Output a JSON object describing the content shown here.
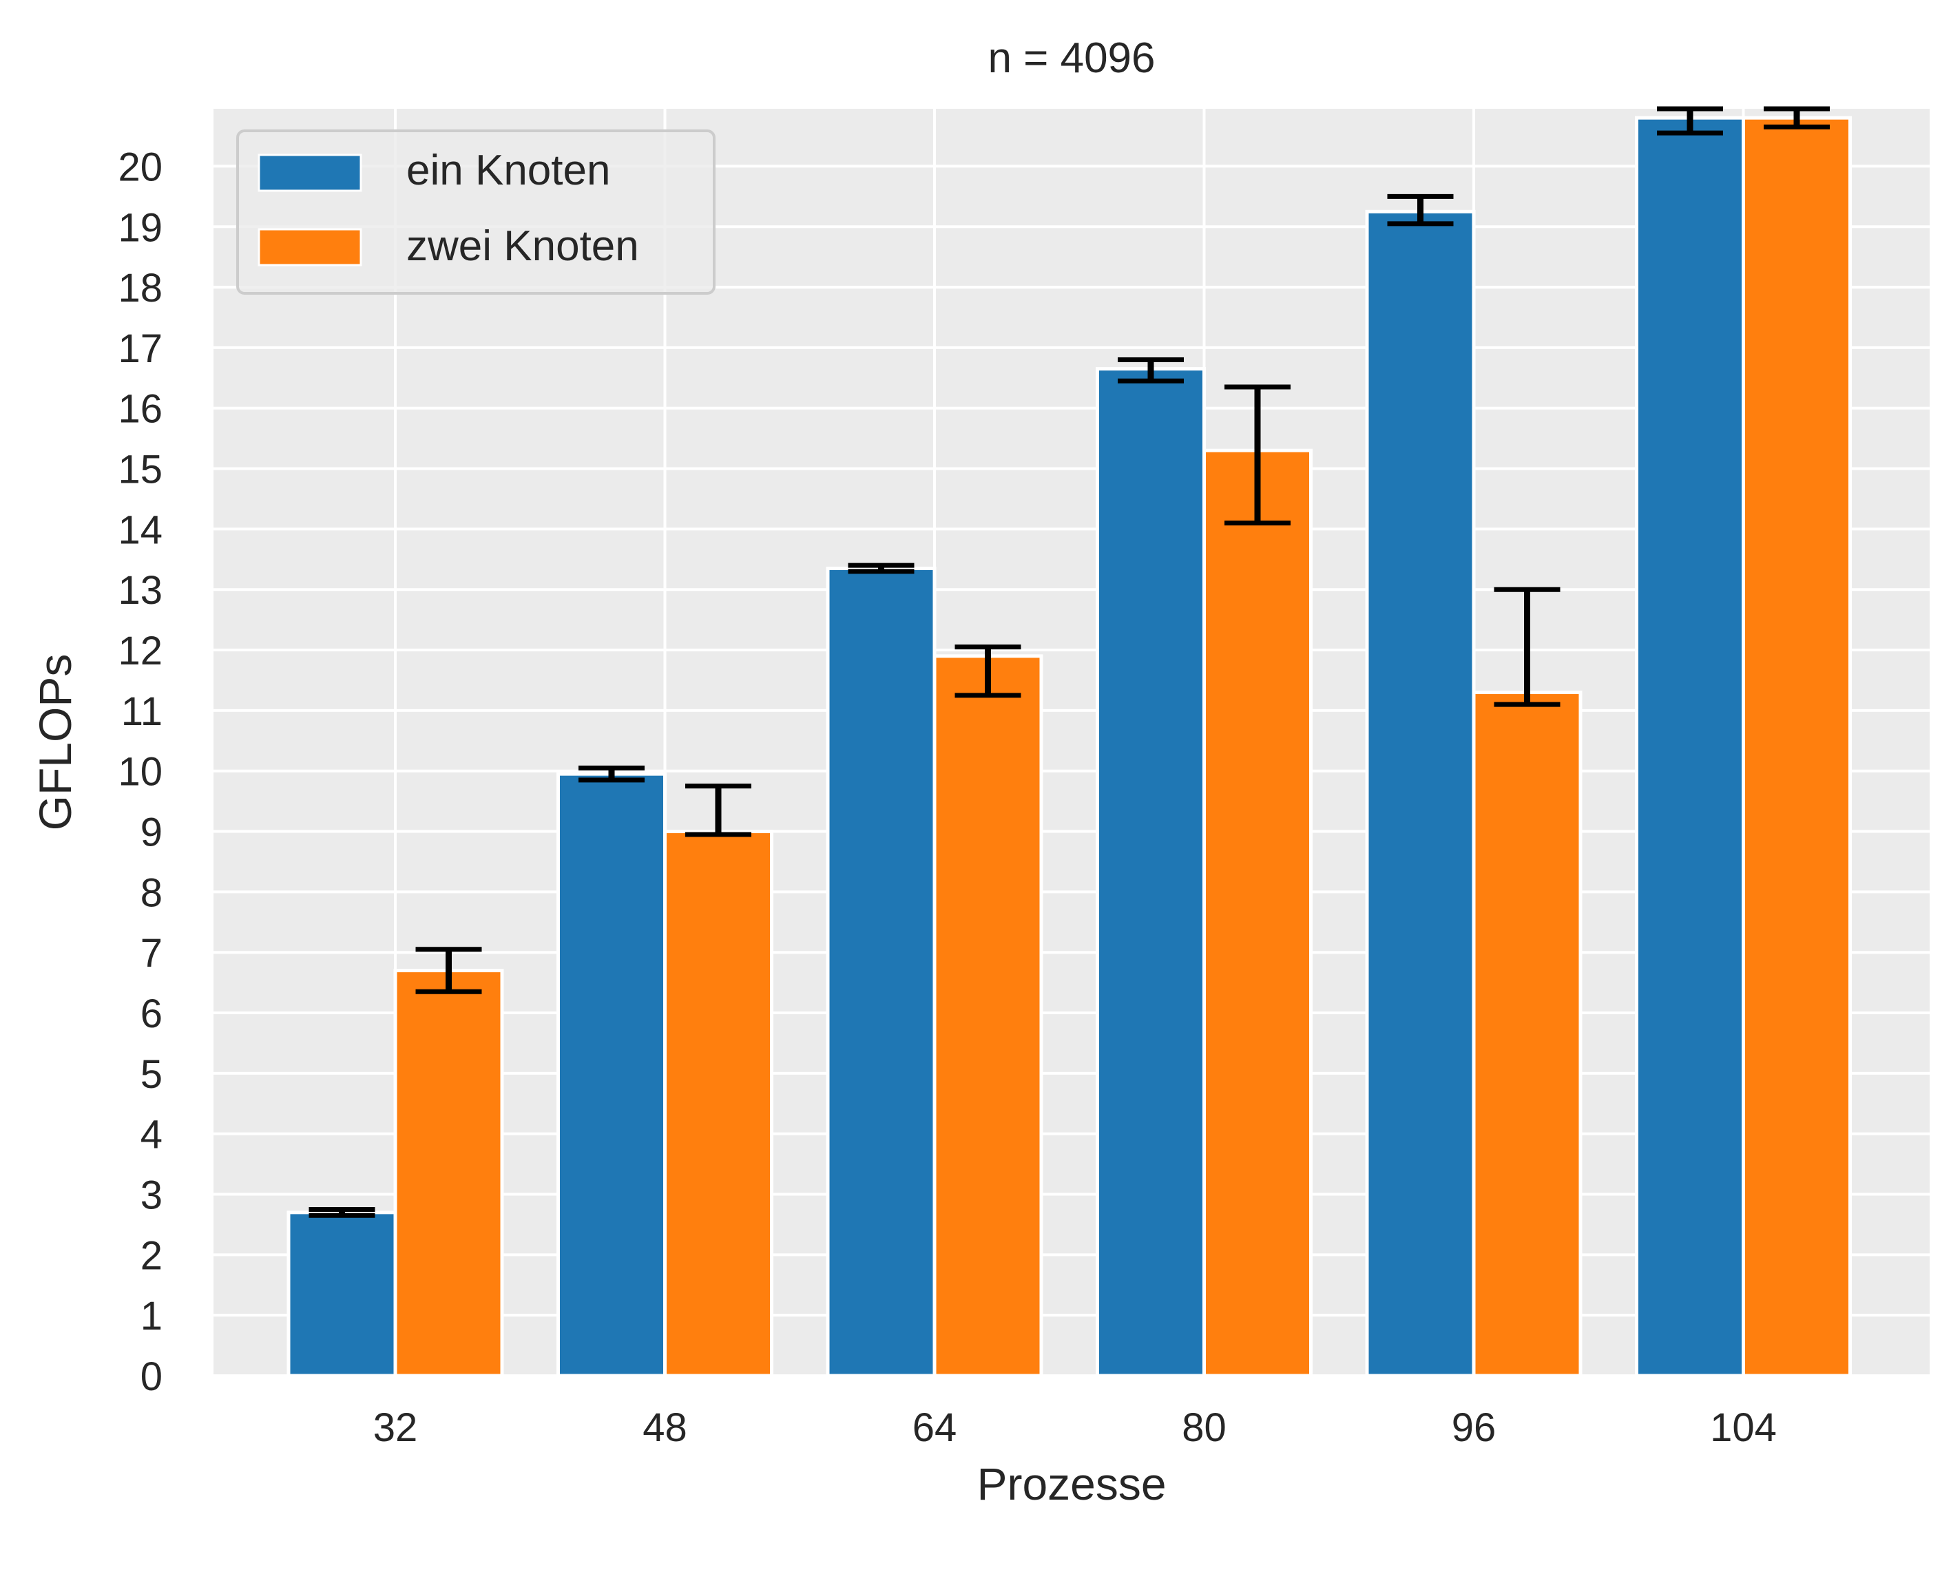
{
  "chart_data": {
    "type": "bar",
    "title": "n = 4096",
    "xlabel": "Prozesse",
    "ylabel": "GFLOPs",
    "categories": [
      "32",
      "48",
      "64",
      "80",
      "96",
      "104"
    ],
    "series": [
      {
        "name": "ein Knoten",
        "color": "#1f77b4",
        "values": [
          2.7,
          9.95,
          13.35,
          16.65,
          19.25,
          20.8
        ],
        "err_low": [
          2.65,
          9.85,
          13.3,
          16.45,
          19.05,
          20.55
        ],
        "err_high": [
          2.75,
          10.05,
          13.4,
          16.8,
          19.5,
          20.95
        ]
      },
      {
        "name": "zwei Knoten",
        "color": "#ff7f0e",
        "values": [
          6.7,
          9.0,
          11.9,
          15.3,
          11.3,
          20.8
        ],
        "err_low": [
          6.35,
          8.95,
          11.25,
          14.1,
          11.1,
          20.65
        ],
        "err_high": [
          7.05,
          9.75,
          12.05,
          16.35,
          13.0,
          20.95
        ]
      }
    ],
    "ylim": [
      0,
      20.95
    ],
    "yticks": [
      0,
      1,
      2,
      3,
      4,
      5,
      6,
      7,
      8,
      9,
      10,
      11,
      12,
      13,
      14,
      15,
      16,
      17,
      18,
      19,
      20
    ],
    "grid": true,
    "legend_position": "top-left",
    "background_color": "#ebebeb",
    "error_bar_color": "#000000"
  }
}
